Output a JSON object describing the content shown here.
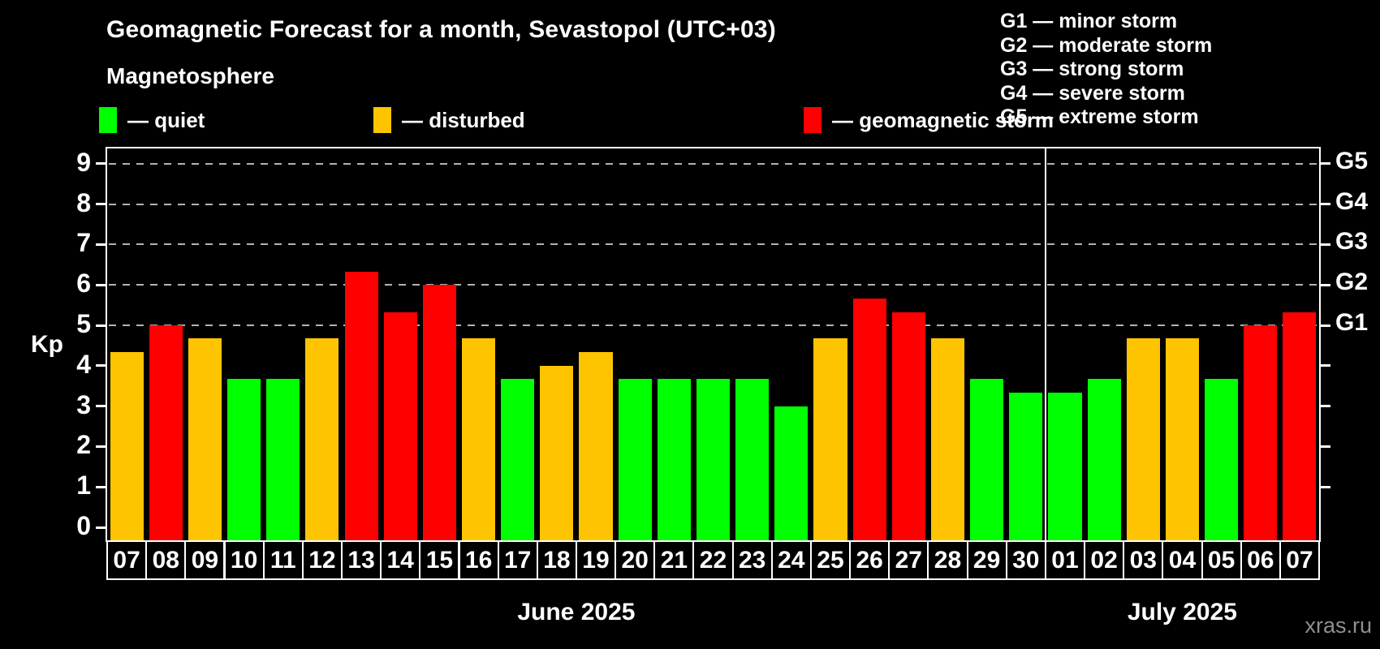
{
  "title": "Geomagnetic Forecast for a month, Sevastopol (UTC+03)",
  "subtitle": "Magnetosphere",
  "legend": [
    {
      "status": "quiet",
      "label": "— quiet",
      "color": "#00ff00"
    },
    {
      "status": "disturbed",
      "label": "— disturbed",
      "color": "#ffc400"
    },
    {
      "status": "storm",
      "label": "— geomagnetic storm",
      "color": "#fe0000"
    }
  ],
  "g_legend": [
    "G1 — minor storm",
    "G2 — moderate storm",
    "G3 — strong storm",
    "G4 — severe storm",
    "G5 — extreme storm"
  ],
  "watermark": "xras.ru",
  "chart_data": {
    "type": "bar",
    "ylabel": "Kp",
    "ylim": [
      0,
      9.4
    ],
    "yticks": [
      0,
      1,
      2,
      3,
      4,
      5,
      6,
      7,
      8,
      9
    ],
    "grid_levels": [
      5,
      6,
      7,
      8,
      9
    ],
    "right_axis_labels": [
      {
        "kp": 5,
        "label": "G1"
      },
      {
        "kp": 6,
        "label": "G2"
      },
      {
        "kp": 7,
        "label": "G3"
      },
      {
        "kp": 8,
        "label": "G4"
      },
      {
        "kp": 9,
        "label": "G5"
      }
    ],
    "status_colors": {
      "quiet": "#00ff00",
      "disturbed": "#ffc400",
      "storm": "#fe0000"
    },
    "months": [
      {
        "label": "June 2025",
        "days": [
          {
            "day": "07",
            "kp": 4.33,
            "status": "disturbed"
          },
          {
            "day": "08",
            "kp": 5.0,
            "status": "storm"
          },
          {
            "day": "09",
            "kp": 4.67,
            "status": "disturbed"
          },
          {
            "day": "10",
            "kp": 3.67,
            "status": "quiet"
          },
          {
            "day": "11",
            "kp": 3.67,
            "status": "quiet"
          },
          {
            "day": "12",
            "kp": 4.67,
            "status": "disturbed"
          },
          {
            "day": "13",
            "kp": 6.33,
            "status": "storm"
          },
          {
            "day": "14",
            "kp": 5.33,
            "status": "storm"
          },
          {
            "day": "15",
            "kp": 6.0,
            "status": "storm"
          },
          {
            "day": "16",
            "kp": 4.67,
            "status": "disturbed"
          },
          {
            "day": "17",
            "kp": 3.67,
            "status": "quiet"
          },
          {
            "day": "18",
            "kp": 4.0,
            "status": "disturbed"
          },
          {
            "day": "19",
            "kp": 4.33,
            "status": "disturbed"
          },
          {
            "day": "20",
            "kp": 3.67,
            "status": "quiet"
          },
          {
            "day": "21",
            "kp": 3.67,
            "status": "quiet"
          },
          {
            "day": "22",
            "kp": 3.67,
            "status": "quiet"
          },
          {
            "day": "23",
            "kp": 3.67,
            "status": "quiet"
          },
          {
            "day": "24",
            "kp": 3.0,
            "status": "quiet"
          },
          {
            "day": "25",
            "kp": 4.67,
            "status": "disturbed"
          },
          {
            "day": "26",
            "kp": 5.67,
            "status": "storm"
          },
          {
            "day": "27",
            "kp": 5.33,
            "status": "storm"
          },
          {
            "day": "28",
            "kp": 4.67,
            "status": "disturbed"
          },
          {
            "day": "29",
            "kp": 3.67,
            "status": "quiet"
          },
          {
            "day": "30",
            "kp": 3.33,
            "status": "quiet"
          }
        ]
      },
      {
        "label": "July 2025",
        "days": [
          {
            "day": "01",
            "kp": 3.33,
            "status": "quiet"
          },
          {
            "day": "02",
            "kp": 3.67,
            "status": "quiet"
          },
          {
            "day": "03",
            "kp": 4.67,
            "status": "disturbed"
          },
          {
            "day": "04",
            "kp": 4.67,
            "status": "disturbed"
          },
          {
            "day": "05",
            "kp": 3.67,
            "status": "quiet"
          },
          {
            "day": "06",
            "kp": 5.0,
            "status": "storm"
          },
          {
            "day": "07",
            "kp": 5.33,
            "status": "storm"
          }
        ]
      }
    ]
  }
}
